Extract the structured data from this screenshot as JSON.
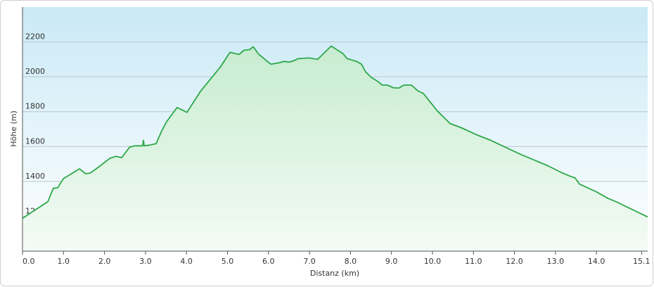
{
  "chart_data": {
    "type": "area",
    "x_label": "Distanz  (km)",
    "y_label": "Höhe (m)",
    "color": "#2ea84a",
    "grid": true,
    "xlim": [
      0,
      15.25
    ],
    "ylim": [
      1000,
      2400
    ],
    "xticks": [
      {
        "value": 0,
        "label": "0.0"
      },
      {
        "value": 1,
        "label": "1.0"
      },
      {
        "value": 2,
        "label": "2.0"
      },
      {
        "value": 3,
        "label": "3.0"
      },
      {
        "value": 4,
        "label": "4.0"
      },
      {
        "value": 5,
        "label": "5.0"
      },
      {
        "value": 6,
        "label": "6.0"
      },
      {
        "value": 7,
        "label": "7.0"
      },
      {
        "value": 8,
        "label": "8.0"
      },
      {
        "value": 9,
        "label": "9.0"
      },
      {
        "value": 10,
        "label": "10.0"
      },
      {
        "value": 11,
        "label": "11.0"
      },
      {
        "value": 12,
        "label": "12.0"
      },
      {
        "value": 13,
        "label": "13.0"
      },
      {
        "value": 14,
        "label": "14.0"
      },
      15.1
    ],
    "yticks": [
      1200,
      1400,
      1600,
      1800,
      2000,
      2200
    ],
    "x": [
      0,
      0.62,
      0.75,
      0.86,
      1.0,
      1.39,
      1.54,
      1.65,
      1.8,
      2.13,
      2.28,
      2.42,
      2.61,
      2.74,
      2.93,
      2.95,
      2.97,
      3.1,
      3.26,
      3.4,
      3.52,
      3.77,
      4.01,
      4.34,
      4.84,
      5.06,
      5.28,
      5.4,
      5.54,
      5.63,
      5.75,
      5.95,
      6.06,
      6.26,
      6.38,
      6.5,
      6.62,
      6.72,
      7.0,
      7.2,
      7.53,
      7.82,
      7.92,
      8.03,
      8.15,
      8.27,
      8.37,
      8.51,
      8.65,
      8.78,
      8.9,
      9.06,
      9.19,
      9.3,
      9.49,
      9.64,
      9.78,
      10.12,
      10.43,
      10.7,
      11.11,
      11.42,
      12.14,
      12.83,
      13.17,
      13.38,
      13.48,
      13.59,
      14.0,
      14.27,
      14.51,
      15.25
    ],
    "values": [
      1188,
      1284,
      1360,
      1364,
      1416,
      1472,
      1444,
      1448,
      1472,
      1532,
      1544,
      1536,
      1596,
      1604,
      1604,
      1636,
      1604,
      1608,
      1616,
      1692,
      1744,
      1824,
      1796,
      1916,
      2060,
      2140,
      2128,
      2152,
      2156,
      2172,
      2132,
      2092,
      2072,
      2080,
      2088,
      2084,
      2092,
      2104,
      2108,
      2100,
      2176,
      2132,
      2104,
      2096,
      2088,
      2072,
      2028,
      1996,
      1976,
      1952,
      1952,
      1936,
      1936,
      1952,
      1952,
      1920,
      1904,
      1804,
      1732,
      1708,
      1664,
      1636,
      1556,
      1488,
      1448,
      1428,
      1420,
      1384,
      1340,
      1304,
      1280,
      1196
    ]
  }
}
